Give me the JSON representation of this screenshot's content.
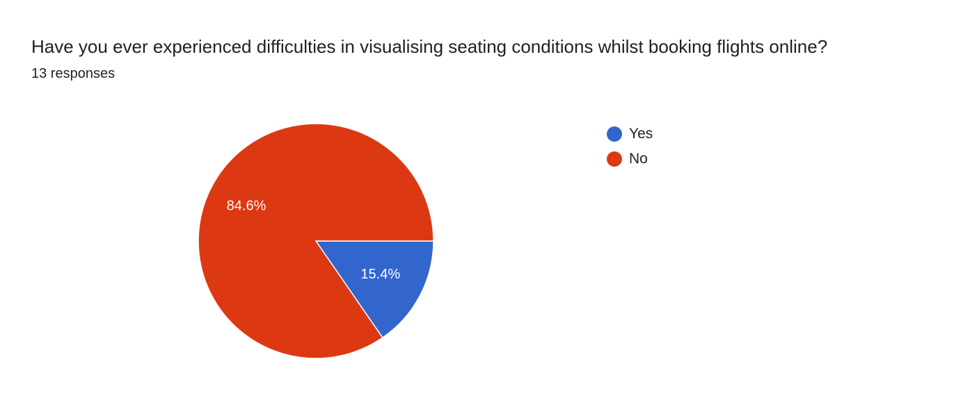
{
  "header": {
    "title": "Have you ever experienced difficulties in visualising seating conditions whilst booking flights online?",
    "responses": "13 responses"
  },
  "chart_data": {
    "type": "pie",
    "categories": [
      "Yes",
      "No"
    ],
    "values": [
      15.4,
      84.6
    ],
    "labels": [
      "15.4%",
      "84.6%"
    ],
    "colors": [
      "#3366cc",
      "#dc3912"
    ],
    "legend": "right",
    "start": "3 o'clock, clockwise"
  }
}
